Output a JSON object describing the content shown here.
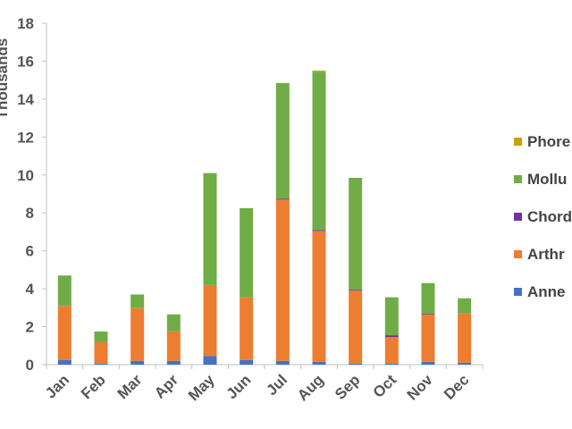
{
  "chart_data": {
    "type": "bar",
    "stacked": true,
    "ylabel": "Thousands",
    "ylim": [
      0,
      18
    ],
    "yticks": [
      0,
      2,
      4,
      6,
      8,
      10,
      12,
      14,
      16,
      18
    ],
    "categories": [
      "Jan",
      "Feb",
      "Mar",
      "Apr",
      "May",
      "Jun",
      "Jul",
      "Aug",
      "Sep",
      "Oct",
      "Nov",
      "Dec"
    ],
    "series": [
      {
        "name": "Anne",
        "color": "#4472C4",
        "values": [
          0.25,
          0.05,
          0.2,
          0.2,
          0.45,
          0.25,
          0.2,
          0.15,
          0.05,
          0.05,
          0.15,
          0.1
        ]
      },
      {
        "name": "Arthr",
        "color": "#ED7D31",
        "values": [
          2.85,
          1.15,
          2.8,
          1.55,
          3.75,
          3.3,
          8.5,
          6.9,
          3.85,
          1.4,
          2.5,
          2.6
        ]
      },
      {
        "name": "Chord",
        "color": "#7030A0",
        "values": [
          0.0,
          0.0,
          0.0,
          0.0,
          0.0,
          0.0,
          0.05,
          0.05,
          0.05,
          0.1,
          0.05,
          0.0
        ]
      },
      {
        "name": "Mollu",
        "color": "#70AD47",
        "values": [
          1.6,
          0.55,
          0.7,
          0.9,
          5.9,
          4.7,
          6.1,
          8.35,
          5.9,
          2.0,
          1.6,
          0.8
        ]
      },
      {
        "name": "Phore",
        "color": "#C9A000",
        "values": [
          0.0,
          0.0,
          0.0,
          0.0,
          0.0,
          0.0,
          0.0,
          0.05,
          0.0,
          0.0,
          0.0,
          0.0
        ]
      }
    ],
    "legend": {
      "position": "right",
      "order": [
        "Phore",
        "Mollu",
        "Chord",
        "Arthr",
        "Anne"
      ]
    },
    "grid": false
  }
}
